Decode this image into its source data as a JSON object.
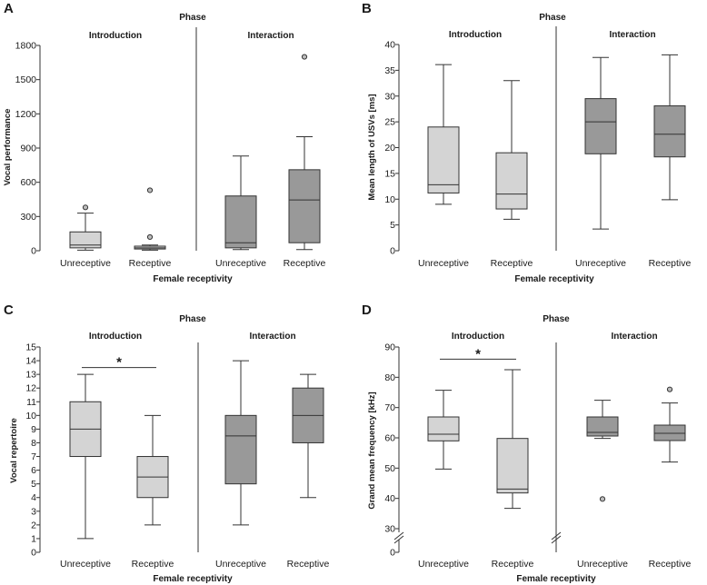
{
  "figure": {
    "colors": {
      "light_box": "#d4d4d4",
      "dark_box": "#999999",
      "line": "#333333"
    }
  },
  "chart_data": [
    {
      "panel_label": "A",
      "type": "boxplot",
      "title": "Phase",
      "facets": [
        "Introduction",
        "Interaction"
      ],
      "xlabel": "Female receptivity",
      "ylabel": "Vocal performance",
      "categories": [
        "Unreceptive",
        "Receptive"
      ],
      "ylim": [
        0,
        1800
      ],
      "yticks": [
        0,
        300,
        600,
        900,
        1200,
        1500,
        1800
      ],
      "axis_break": false,
      "significance": [],
      "boxes": [
        {
          "facet": "Introduction",
          "category": "Unreceptive",
          "min": 5,
          "q1": 25,
          "median": 50,
          "q3": 165,
          "max": 330,
          "outliers": [
            380
          ],
          "shade": "light"
        },
        {
          "facet": "Introduction",
          "category": "Receptive",
          "min": 5,
          "q1": 15,
          "median": 25,
          "q3": 40,
          "max": 50,
          "outliers": [
            120,
            530
          ],
          "shade": "light"
        },
        {
          "facet": "Interaction",
          "category": "Unreceptive",
          "min": 10,
          "q1": 25,
          "median": 70,
          "q3": 480,
          "max": 830,
          "outliers": [],
          "shade": "dark"
        },
        {
          "facet": "Interaction",
          "category": "Receptive",
          "min": 10,
          "q1": 70,
          "median": 445,
          "q3": 710,
          "max": 1000,
          "outliers": [
            1700
          ],
          "shade": "dark"
        }
      ]
    },
    {
      "panel_label": "B",
      "type": "boxplot",
      "title": "Phase",
      "facets": [
        "Introduction",
        "Interaction"
      ],
      "xlabel": "Female receptivity",
      "ylabel": "Mean length of USVs [ms]",
      "categories": [
        "Unreceptive",
        "Receptive"
      ],
      "ylim": [
        0,
        40
      ],
      "yticks": [
        0,
        5,
        10,
        15,
        20,
        25,
        30,
        35,
        40
      ],
      "axis_break": false,
      "significance": [],
      "boxes": [
        {
          "facet": "Introduction",
          "category": "Unreceptive",
          "min": 9,
          "q1": 11.2,
          "median": 12.8,
          "q3": 24,
          "max": 36.1,
          "outliers": [],
          "shade": "light"
        },
        {
          "facet": "Introduction",
          "category": "Receptive",
          "min": 6.1,
          "q1": 8.1,
          "median": 11,
          "q3": 19,
          "max": 33,
          "outliers": [],
          "shade": "light"
        },
        {
          "facet": "Interaction",
          "category": "Unreceptive",
          "min": 4.2,
          "q1": 18.8,
          "median": 25,
          "q3": 29.5,
          "max": 37.5,
          "outliers": [],
          "shade": "dark"
        },
        {
          "facet": "Interaction",
          "category": "Receptive",
          "min": 9.9,
          "q1": 18.2,
          "median": 22.6,
          "q3": 28.1,
          "max": 38,
          "outliers": [],
          "shade": "dark"
        }
      ]
    },
    {
      "panel_label": "C",
      "type": "boxplot",
      "title": "Phase",
      "facets": [
        "Introduction",
        "Interaction"
      ],
      "xlabel": "Female receptivity",
      "ylabel": "Vocal repertoire",
      "categories": [
        "Unreceptive",
        "Receptive"
      ],
      "ylim": [
        0,
        15
      ],
      "yticks": [
        0,
        1,
        2,
        3,
        4,
        5,
        6,
        7,
        8,
        9,
        10,
        11,
        12,
        13,
        14,
        15
      ],
      "axis_break": false,
      "significance": [
        {
          "facet": "Introduction",
          "from": "Unreceptive",
          "to": "Receptive",
          "y": 13.5,
          "label": "*"
        }
      ],
      "boxes": [
        {
          "facet": "Introduction",
          "category": "Unreceptive",
          "min": 1,
          "q1": 7,
          "median": 9,
          "q3": 11,
          "max": 13,
          "outliers": [],
          "shade": "light"
        },
        {
          "facet": "Introduction",
          "category": "Receptive",
          "min": 2,
          "q1": 4,
          "median": 5.5,
          "q3": 7,
          "max": 10,
          "outliers": [],
          "shade": "light"
        },
        {
          "facet": "Interaction",
          "category": "Unreceptive",
          "min": 2,
          "q1": 5,
          "median": 8.5,
          "q3": 10,
          "max": 14,
          "outliers": [],
          "shade": "dark"
        },
        {
          "facet": "Interaction",
          "category": "Receptive",
          "min": 4,
          "q1": 8,
          "median": 10,
          "q3": 12,
          "max": 13,
          "outliers": [],
          "shade": "dark"
        }
      ]
    },
    {
      "panel_label": "D",
      "type": "boxplot",
      "title": "Phase",
      "facets": [
        "Introduction",
        "Interaction"
      ],
      "xlabel": "Female receptivity",
      "ylabel": "Grand mean frequency [kHz]",
      "categories": [
        "Unreceptive",
        "Receptive"
      ],
      "ylim": [
        0,
        90
      ],
      "yticks": [
        0,
        30,
        40,
        50,
        60,
        70,
        80,
        90
      ],
      "axis_break": true,
      "significance": [
        {
          "facet": "Introduction",
          "from": "Unreceptive",
          "to": "Receptive",
          "y": 86,
          "label": "*"
        }
      ],
      "boxes": [
        {
          "facet": "Introduction",
          "category": "Unreceptive",
          "min": 49.7,
          "q1": 59,
          "median": 61.2,
          "q3": 66.9,
          "max": 75.7,
          "outliers": [],
          "shade": "light"
        },
        {
          "facet": "Introduction",
          "category": "Receptive",
          "min": 36.7,
          "q1": 41.8,
          "median": 43.1,
          "q3": 59.8,
          "max": 82.5,
          "outliers": [],
          "shade": "light"
        },
        {
          "facet": "Interaction",
          "category": "Unreceptive",
          "min": 59.8,
          "q1": 60.6,
          "median": 61.8,
          "q3": 66.9,
          "max": 72.4,
          "outliers": [
            39.8
          ],
          "shade": "dark"
        },
        {
          "facet": "Interaction",
          "category": "Receptive",
          "min": 52,
          "q1": 59.1,
          "median": 61.5,
          "q3": 64.2,
          "max": 71.5,
          "outliers": [
            76
          ],
          "shade": "dark"
        }
      ]
    }
  ]
}
